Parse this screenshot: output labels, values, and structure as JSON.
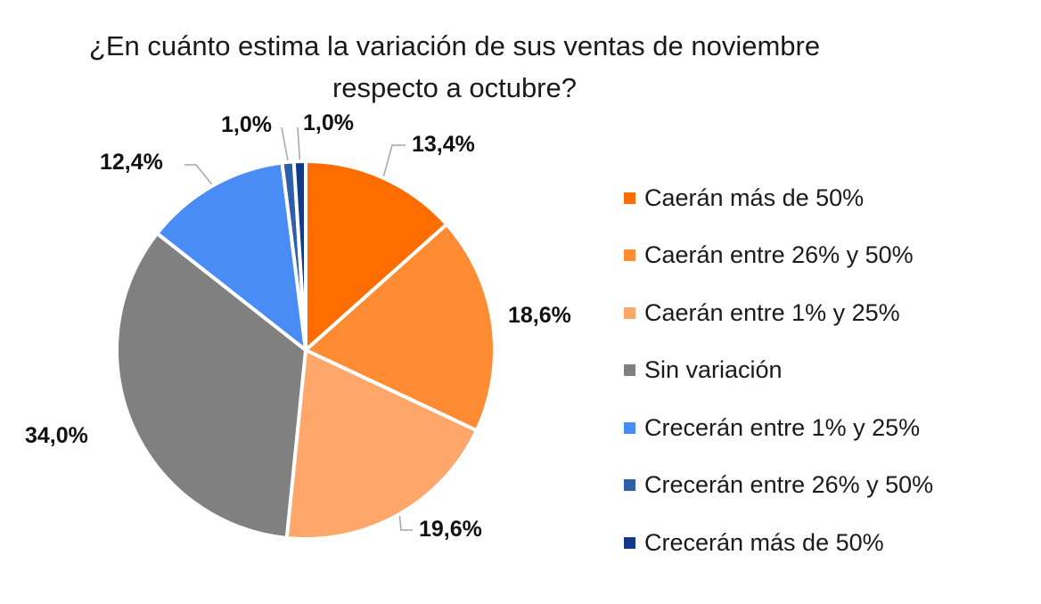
{
  "chart_data": {
    "type": "pie",
    "title_line1": "¿En cuánto estima la variación de sus ventas de noviembre",
    "title_line2": "respecto a octubre?",
    "legend_position": "right",
    "slices": [
      {
        "name": "Caerán más de 50%",
        "value": 13.4,
        "label": "13,4%",
        "color": "#FF6D00"
      },
      {
        "name": "Caerán entre 26% y 50%",
        "value": 18.6,
        "label": "18,6%",
        "color": "#FF8C32"
      },
      {
        "name": "Caerán entre 1% y 25%",
        "value": 19.6,
        "label": "19,6%",
        "color": "#FFA76A"
      },
      {
        "name": "Sin variación",
        "value": 34.0,
        "label": "34,0%",
        "color": "#808080"
      },
      {
        "name": "Crecerán entre 1% y 25%",
        "value": 12.4,
        "label": "12,4%",
        "color": "#4A8CF5"
      },
      {
        "name": "Crecerán entre 26% y 50%",
        "value": 1.0,
        "label": "1,0%",
        "color": "#2E5FA8"
      },
      {
        "name": "Crecerán más de 50%",
        "value": 1.0,
        "label": "1,0%",
        "color": "#123A8A"
      }
    ]
  }
}
